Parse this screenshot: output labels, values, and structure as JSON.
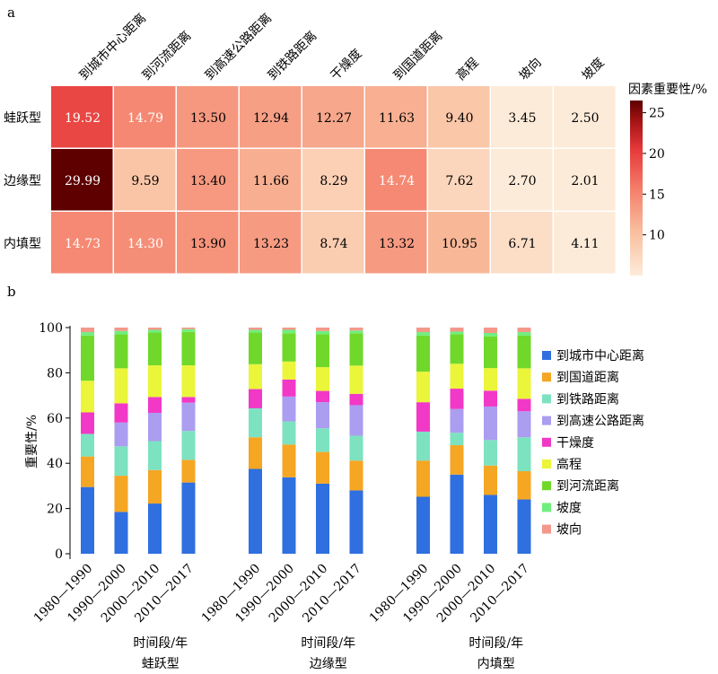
{
  "chart_data": [
    {
      "type": "heatmap",
      "panel_label": "a",
      "columns": [
        "到城市中心距离",
        "到河流距离",
        "到高速公路距离",
        "到铁路距离",
        "干燥度",
        "到国道距离",
        "高程",
        "坡向",
        "坡度"
      ],
      "rows": [
        "蛙跃型",
        "边缘型",
        "内填型"
      ],
      "values": [
        [
          19.52,
          14.79,
          13.5,
          12.94,
          12.27,
          11.63,
          9.4,
          3.45,
          2.5
        ],
        [
          29.99,
          9.59,
          13.4,
          11.66,
          8.29,
          14.74,
          7.62,
          2.7,
          2.01
        ],
        [
          14.73,
          14.3,
          13.9,
          13.23,
          8.74,
          13.32,
          10.95,
          6.71,
          4.11
        ]
      ],
      "value_labels": [
        [
          "19.52",
          "14.79",
          "13.50",
          "12.94",
          "12.27",
          "11.63",
          "9.40",
          "3.45",
          "2.50"
        ],
        [
          "29.99",
          "9.59",
          "13.40",
          "11.66",
          "8.29",
          "14.74",
          "7.62",
          "2.70",
          "2.01"
        ],
        [
          "14.73",
          "14.30",
          "13.90",
          "13.23",
          "8.74",
          "13.32",
          "10.95",
          "6.71",
          "4.11"
        ]
      ],
      "colorbar": {
        "title": "因素重要性/%",
        "min": 5,
        "max": 26.5,
        "ticks": [
          10,
          15,
          20,
          25
        ]
      },
      "colors": {
        "low": "#fdebd9",
        "mid": "#f7a487",
        "high_mid": "#e6393a",
        "high": "#5e0000"
      }
    },
    {
      "type": "bar",
      "stacked": true,
      "panel_label": "b",
      "ylabel": "重要性/%",
      "ylim": [
        0,
        100
      ],
      "yticks": [
        0,
        20,
        40,
        60,
        80,
        100
      ],
      "categories": [
        "1980—1990",
        "1990—2000",
        "2000—2010",
        "2010—2017"
      ],
      "groups": [
        {
          "name": "蛙跃型",
          "xlabel": "时间段/年"
        },
        {
          "name": "边缘型",
          "xlabel": "时间段/年"
        },
        {
          "name": "内填型",
          "xlabel": "时间段/年"
        }
      ],
      "series": [
        {
          "name": "到城市中心距离",
          "color": "#2f6fe0",
          "values": [
            [
              29.5,
              18.5,
              22.2,
              31.5
            ],
            [
              37.5,
              33.8,
              31.0,
              28.0
            ],
            [
              25.2,
              35.0,
              26.0,
              24.0
            ]
          ]
        },
        {
          "name": "到国道距离",
          "color": "#f5a623",
          "values": [
            [
              13.5,
              16.0,
              14.8,
              10.0
            ],
            [
              14.0,
              14.5,
              14.0,
              13.2
            ],
            [
              16.0,
              13.0,
              13.0,
              12.5
            ]
          ]
        },
        {
          "name": "到铁路距离",
          "color": "#7de2c0",
          "values": [
            [
              10.0,
              13.0,
              12.8,
              12.8
            ],
            [
              12.8,
              10.2,
              10.5,
              11.0
            ],
            [
              12.8,
              5.5,
              11.3,
              15.0
            ]
          ]
        },
        {
          "name": "到高速公路距离",
          "color": "#ab9df0",
          "values": [
            [
              0.0,
              10.5,
              12.5,
              12.5
            ],
            [
              0.0,
              11.0,
              11.5,
              13.5
            ],
            [
              0.0,
              10.5,
              14.8,
              11.5
            ]
          ]
        },
        {
          "name": "干燥度",
          "color": "#f238c6",
          "values": [
            [
              9.5,
              8.5,
              7.0,
              2.5
            ],
            [
              8.5,
              7.5,
              5.0,
              5.0
            ],
            [
              13.0,
              9.0,
              7.0,
              5.5
            ]
          ]
        },
        {
          "name": "高程",
          "color": "#ebf53a",
          "values": [
            [
              14.0,
              15.5,
              14.0,
              14.0
            ],
            [
              11.0,
              8.0,
              10.5,
              12.5
            ],
            [
              13.5,
              11.0,
              10.0,
              13.5
            ]
          ]
        },
        {
          "name": "到河流距离",
          "color": "#70d82a",
          "values": [
            [
              20.0,
              15.0,
              14.5,
              14.8
            ],
            [
              14.0,
              12.5,
              14.5,
              14.3
            ],
            [
              16.0,
              13.0,
              14.0,
              14.5
            ]
          ]
        },
        {
          "name": "坡度",
          "color": "#6fef7e",
          "values": [
            [
              1.5,
              1.5,
              1.2,
              1.2
            ],
            [
              1.2,
              1.5,
              1.5,
              1.2
            ],
            [
              1.5,
              1.2,
              1.5,
              1.5
            ]
          ]
        },
        {
          "name": "坡向",
          "color": "#f2998a",
          "values": [
            [
              2.0,
              1.5,
              1.0,
              0.7
            ],
            [
              1.0,
              1.0,
              1.5,
              1.3
            ],
            [
              2.0,
              1.8,
              2.4,
              2.0
            ]
          ]
        }
      ],
      "legend_order": [
        "到城市中心距离",
        "到国道距离",
        "到铁路距离",
        "到高速公路距离",
        "干燥度",
        "高程",
        "到河流距离",
        "坡度",
        "坡向"
      ],
      "legend": "right"
    }
  ]
}
